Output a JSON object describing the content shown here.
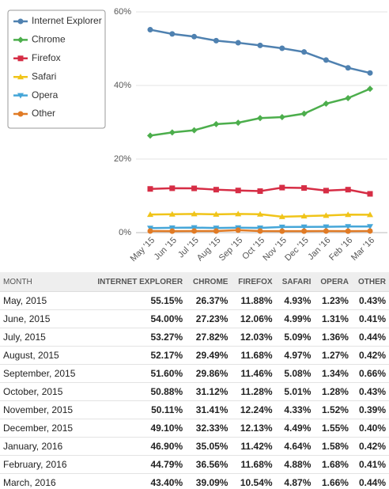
{
  "chart_data": {
    "type": "line",
    "categories": [
      "May '15",
      "Jun '15",
      "Jul '15",
      "Aug '15",
      "Sep '15",
      "Oct '15",
      "Nov '15",
      "Dec '15",
      "Jan '16",
      "Feb '16",
      "Mar '16"
    ],
    "series": [
      {
        "name": "Internet Explorer",
        "color": "#4f81b0",
        "marker": "circle",
        "values": [
          55.15,
          54.0,
          53.27,
          52.17,
          51.6,
          50.88,
          50.11,
          49.1,
          46.9,
          44.79,
          43.4
        ]
      },
      {
        "name": "Chrome",
        "color": "#4cae4c",
        "marker": "diamond",
        "values": [
          26.37,
          27.23,
          27.82,
          29.49,
          29.86,
          31.12,
          31.41,
          32.33,
          35.05,
          36.56,
          39.09
        ]
      },
      {
        "name": "Firefox",
        "color": "#d62d45",
        "marker": "square",
        "values": [
          11.88,
          12.06,
          12.03,
          11.68,
          11.46,
          11.28,
          12.24,
          12.13,
          11.42,
          11.68,
          10.54
        ]
      },
      {
        "name": "Safari",
        "color": "#f0c419",
        "marker": "triangle",
        "values": [
          4.93,
          4.99,
          5.09,
          4.97,
          5.08,
          5.01,
          4.33,
          4.49,
          4.64,
          4.88,
          4.87
        ]
      },
      {
        "name": "Opera",
        "color": "#45a6d8",
        "marker": "triangle-down",
        "values": [
          1.23,
          1.31,
          1.36,
          1.27,
          1.34,
          1.28,
          1.52,
          1.55,
          1.58,
          1.68,
          1.66
        ]
      },
      {
        "name": "Other",
        "color": "#e07b26",
        "marker": "circle",
        "values": [
          0.43,
          0.41,
          0.44,
          0.42,
          0.66,
          0.43,
          0.39,
          0.4,
          0.42,
          0.41,
          0.44
        ]
      }
    ],
    "ylim": [
      0,
      60
    ],
    "yticks": [
      {
        "value": 0,
        "label": "0%"
      },
      {
        "value": 20,
        "label": "20%"
      },
      {
        "value": 40,
        "label": "40%"
      },
      {
        "value": 60,
        "label": "60%"
      }
    ],
    "grid": true,
    "legend": "top-left"
  },
  "table": {
    "header": [
      "MONTH",
      "INTERNET EXPLORER",
      "CHROME",
      "FIREFOX",
      "SAFARI",
      "OPERA",
      "OTHER"
    ],
    "rows": [
      [
        "May, 2015",
        "55.15%",
        "26.37%",
        "11.88%",
        "4.93%",
        "1.23%",
        "0.43%"
      ],
      [
        "June, 2015",
        "54.00%",
        "27.23%",
        "12.06%",
        "4.99%",
        "1.31%",
        "0.41%"
      ],
      [
        "July, 2015",
        "53.27%",
        "27.82%",
        "12.03%",
        "5.09%",
        "1.36%",
        "0.44%"
      ],
      [
        "August, 2015",
        "52.17%",
        "29.49%",
        "11.68%",
        "4.97%",
        "1.27%",
        "0.42%"
      ],
      [
        "September, 2015",
        "51.60%",
        "29.86%",
        "11.46%",
        "5.08%",
        "1.34%",
        "0.66%"
      ],
      [
        "October, 2015",
        "50.88%",
        "31.12%",
        "11.28%",
        "5.01%",
        "1.28%",
        "0.43%"
      ],
      [
        "November, 2015",
        "50.11%",
        "31.41%",
        "12.24%",
        "4.33%",
        "1.52%",
        "0.39%"
      ],
      [
        "December, 2015",
        "49.10%",
        "32.33%",
        "12.13%",
        "4.49%",
        "1.55%",
        "0.40%"
      ],
      [
        "January, 2016",
        "46.90%",
        "35.05%",
        "11.42%",
        "4.64%",
        "1.58%",
        "0.42%"
      ],
      [
        "February, 2016",
        "44.79%",
        "36.56%",
        "11.68%",
        "4.88%",
        "1.68%",
        "0.41%"
      ],
      [
        "March, 2016",
        "43.40%",
        "39.09%",
        "10.54%",
        "4.87%",
        "1.66%",
        "0.44%"
      ]
    ]
  }
}
